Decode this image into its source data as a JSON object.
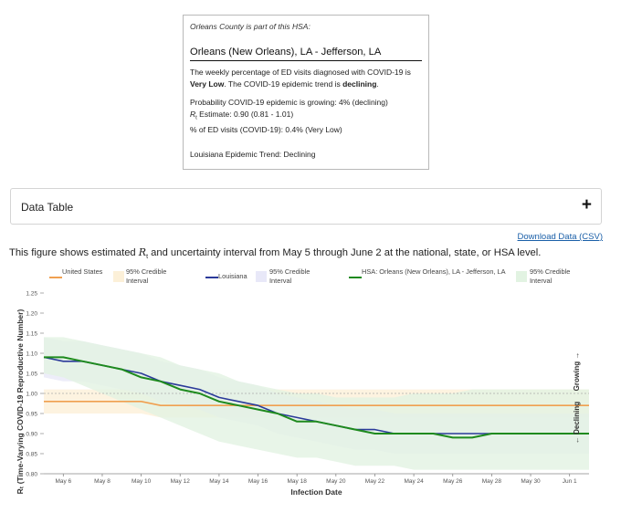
{
  "tooltip": {
    "header": "Orleans County is part of this HSA:",
    "hsa_name": "Orleans (New Orleans), LA - Jefferson, LA",
    "summary_pre": "The weekly percentage of ED visits diagnosed with COVID-19 is ",
    "summary_level": "Very Low",
    "summary_mid": ". The COVID-19 epidemic trend is ",
    "summary_trend": "declining",
    "summary_end": ".",
    "probability": "Probability COVID-19 epidemic is growing: 4% (declining)",
    "rt_symbol": "R",
    "rt_sub": "t",
    "rt_text": " Estimate: 0.90 (0.81 - 1.01)",
    "ed_visits": "% of ED visits (COVID-19): 0.4% (Very Low)",
    "state_trend": "Louisiana Epidemic Trend: Declining"
  },
  "data_table": {
    "label": "Data Table",
    "toggle": "+"
  },
  "download": {
    "label": "Download Data (CSV)"
  },
  "caption": {
    "pre": "This figure shows estimated ",
    "symbol": "R",
    "sub": "t",
    "post": " and uncertainty interval from May 5 through June 2 at the national, state, or HSA level."
  },
  "legend": [
    {
      "label": "United States",
      "kind": "line",
      "color": "#f0a050"
    },
    {
      "label": "95% Credible Interval",
      "kind": "band",
      "color": "#fcf0d8"
    },
    {
      "label": "Louisiana",
      "kind": "line",
      "color": "#2b3a9a"
    },
    {
      "label": "95% Credible Interval",
      "kind": "band",
      "color": "#e8e8f8"
    },
    {
      "label": "HSA: Orleans (New Orleans), LA - Jefferson, LA",
      "kind": "line",
      "color": "#1e8a1e"
    },
    {
      "label": "95% Credible Interval",
      "kind": "band",
      "color": "#e2f3e2"
    }
  ],
  "chart_data": {
    "type": "line",
    "xlabel": "Infection Date",
    "ylabel": "Rₜ (Time-Varying COVID-19 Reproductive Number)",
    "x_ticks": [
      "May 6",
      "May 8",
      "May 10",
      "May 12",
      "May 14",
      "May 16",
      "May 18",
      "May 20",
      "May 22",
      "May 24",
      "May 26",
      "May 28",
      "May 30",
      "Jun 1"
    ],
    "y_ticks": [
      "0.80",
      "0.85",
      "0.90",
      "0.95",
      "1.00",
      "1.05",
      "1.10",
      "1.15",
      "1.20",
      "1.25"
    ],
    "ylim": [
      0.8,
      1.25
    ],
    "reference_line": 1.0,
    "annotations": {
      "growing": "Growing →",
      "declining": "← Declining"
    },
    "dates": [
      "May 5",
      "May 6",
      "May 7",
      "May 8",
      "May 9",
      "May 10",
      "May 11",
      "May 12",
      "May 13",
      "May 14",
      "May 15",
      "May 16",
      "May 17",
      "May 18",
      "May 19",
      "May 20",
      "May 21",
      "May 22",
      "May 23",
      "May 24",
      "May 25",
      "May 26",
      "May 27",
      "May 28",
      "May 29",
      "May 30",
      "May 31",
      "Jun 1",
      "Jun 2"
    ],
    "series": [
      {
        "name": "United States",
        "color": "#f0a050",
        "values": [
          0.98,
          0.98,
          0.98,
          0.98,
          0.98,
          0.98,
          0.97,
          0.97,
          0.97,
          0.97,
          0.97,
          0.97,
          0.97,
          0.97,
          0.97,
          0.97,
          0.97,
          0.97,
          0.97,
          0.97,
          0.97,
          0.97,
          0.97,
          0.97,
          0.97,
          0.97,
          0.97,
          0.97,
          0.97
        ],
        "lower": [
          0.95,
          0.95,
          0.95,
          0.95,
          0.95,
          0.95,
          0.94,
          0.94,
          0.94,
          0.94,
          0.94,
          0.94,
          0.94,
          0.94,
          0.94,
          0.94,
          0.94,
          0.94,
          0.94,
          0.94,
          0.94,
          0.94,
          0.94,
          0.94,
          0.94,
          0.94,
          0.94,
          0.94,
          0.94
        ],
        "upper": [
          1.01,
          1.01,
          1.01,
          1.01,
          1.01,
          1.01,
          1.01,
          1.01,
          1.01,
          1.01,
          1.01,
          1.01,
          1.01,
          1.01,
          1.01,
          1.01,
          1.01,
          1.01,
          1.01,
          1.01,
          1.01,
          1.01,
          1.01,
          1.01,
          1.01,
          1.01,
          1.01,
          1.01,
          1.01
        ],
        "band_color": "#fcf0d8"
      },
      {
        "name": "Louisiana",
        "color": "#2b3a9a",
        "values": [
          1.09,
          1.08,
          1.08,
          1.07,
          1.06,
          1.05,
          1.03,
          1.02,
          1.01,
          0.99,
          0.98,
          0.97,
          0.95,
          0.94,
          0.93,
          0.92,
          0.91,
          0.91,
          0.9,
          0.9,
          0.9,
          0.9,
          0.9,
          0.9,
          0.9,
          0.9,
          0.9,
          0.9,
          0.9
        ],
        "lower": [
          1.04,
          1.03,
          1.03,
          1.02,
          1.01,
          1.0,
          0.98,
          0.97,
          0.96,
          0.94,
          0.93,
          0.92,
          0.9,
          0.89,
          0.88,
          0.87,
          0.86,
          0.86,
          0.85,
          0.85,
          0.85,
          0.85,
          0.85,
          0.85,
          0.85,
          0.85,
          0.85,
          0.85,
          0.85
        ],
        "upper": [
          1.14,
          1.13,
          1.13,
          1.12,
          1.11,
          1.1,
          1.08,
          1.07,
          1.06,
          1.04,
          1.03,
          1.02,
          1.0,
          0.99,
          0.98,
          0.97,
          0.96,
          0.96,
          0.95,
          0.95,
          0.95,
          0.95,
          0.95,
          0.95,
          0.95,
          0.95,
          0.95,
          0.95,
          0.95
        ],
        "band_color": "#e8e8f8"
      },
      {
        "name": "HSA: Orleans (New Orleans), LA - Jefferson, LA",
        "color": "#1e8a1e",
        "values": [
          1.09,
          1.09,
          1.08,
          1.07,
          1.06,
          1.04,
          1.03,
          1.01,
          1.0,
          0.98,
          0.97,
          0.96,
          0.95,
          0.93,
          0.93,
          0.92,
          0.91,
          0.9,
          0.9,
          0.9,
          0.9,
          0.89,
          0.89,
          0.9,
          0.9,
          0.9,
          0.9,
          0.9,
          0.9
        ],
        "lower": [
          1.05,
          1.04,
          1.02,
          1.0,
          0.98,
          0.96,
          0.94,
          0.92,
          0.9,
          0.88,
          0.87,
          0.86,
          0.85,
          0.84,
          0.84,
          0.83,
          0.82,
          0.82,
          0.82,
          0.81,
          0.81,
          0.81,
          0.81,
          0.81,
          0.81,
          0.81,
          0.81,
          0.81,
          0.81
        ],
        "upper": [
          1.14,
          1.14,
          1.13,
          1.12,
          1.11,
          1.1,
          1.09,
          1.07,
          1.06,
          1.05,
          1.03,
          1.02,
          1.01,
          1.0,
          1.0,
          0.99,
          0.99,
          0.99,
          0.99,
          1.0,
          1.0,
          1.0,
          1.01,
          1.01,
          1.01,
          1.01,
          1.01,
          1.01,
          1.01
        ],
        "band_color": "#e2f3e2"
      }
    ]
  }
}
